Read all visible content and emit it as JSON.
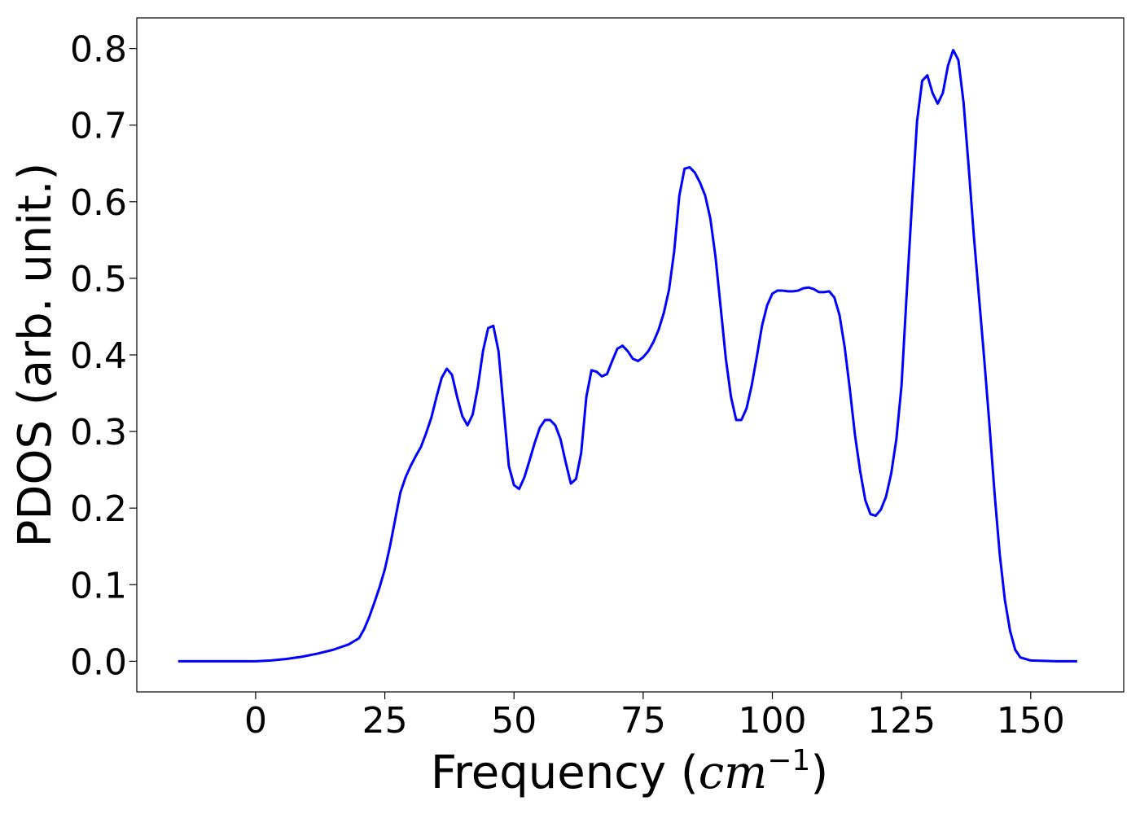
{
  "chart_data": {
    "type": "line",
    "xlabel_prefix": "Frequency (",
    "xlabel_math": "cm",
    "xlabel_sup": "−1",
    "xlabel_suffix": ")",
    "ylabel": "PDOS (arb. unit.)",
    "xlim": [
      -23,
      168
    ],
    "ylim": [
      -0.04,
      0.84
    ],
    "xticks": [
      0,
      25,
      50,
      75,
      100,
      125,
      150
    ],
    "yticks": [
      0.0,
      0.1,
      0.2,
      0.3,
      0.4,
      0.5,
      0.6,
      0.7,
      0.8
    ],
    "ytick_labels": [
      "0.0",
      "0.1",
      "0.2",
      "0.3",
      "0.4",
      "0.5",
      "0.6",
      "0.7",
      "0.8"
    ],
    "grid": false,
    "color": "#0000ff",
    "series": [
      {
        "x": [
          -15,
          -10,
          -5,
          0,
          3,
          6,
          9,
          12,
          15,
          18,
          20,
          21,
          22,
          23,
          24,
          25,
          26,
          27,
          28,
          29,
          30,
          31,
          32,
          33,
          34,
          35,
          36,
          37,
          38,
          39,
          40,
          41,
          42,
          43,
          44,
          45,
          46,
          47,
          48,
          49,
          50,
          51,
          52,
          53,
          54,
          55,
          56,
          57,
          58,
          59,
          60,
          61,
          62,
          63,
          64,
          65,
          66,
          67,
          68,
          69,
          70,
          71,
          72,
          73,
          74,
          75,
          76,
          77,
          78,
          79,
          80,
          81,
          82,
          83,
          84,
          85,
          86,
          87,
          88,
          89,
          90,
          91,
          92,
          93,
          94,
          95,
          96,
          97,
          98,
          99,
          100,
          101,
          102,
          103,
          104,
          105,
          106,
          107,
          108,
          109,
          110,
          111,
          112,
          113,
          114,
          115,
          116,
          117,
          118,
          119,
          120,
          121,
          122,
          123,
          124,
          125,
          126,
          127,
          128,
          129,
          130,
          131,
          132,
          133,
          134,
          135,
          136,
          137,
          138,
          139,
          140,
          141,
          142,
          143,
          144,
          145,
          146,
          147,
          148,
          150,
          155,
          159
        ],
        "y": [
          0.0,
          0.0,
          0.0,
          0.0,
          0.001,
          0.003,
          0.006,
          0.01,
          0.015,
          0.022,
          0.03,
          0.042,
          0.058,
          0.077,
          0.097,
          0.12,
          0.15,
          0.185,
          0.22,
          0.24,
          0.255,
          0.268,
          0.28,
          0.298,
          0.318,
          0.345,
          0.37,
          0.382,
          0.374,
          0.345,
          0.32,
          0.308,
          0.322,
          0.358,
          0.405,
          0.435,
          0.438,
          0.405,
          0.33,
          0.255,
          0.23,
          0.225,
          0.24,
          0.262,
          0.285,
          0.305,
          0.315,
          0.315,
          0.308,
          0.29,
          0.26,
          0.232,
          0.238,
          0.272,
          0.345,
          0.38,
          0.378,
          0.372,
          0.375,
          0.392,
          0.408,
          0.412,
          0.405,
          0.395,
          0.392,
          0.397,
          0.405,
          0.417,
          0.433,
          0.455,
          0.485,
          0.535,
          0.608,
          0.643,
          0.645,
          0.638,
          0.625,
          0.608,
          0.578,
          0.528,
          0.462,
          0.395,
          0.345,
          0.315,
          0.315,
          0.33,
          0.36,
          0.398,
          0.438,
          0.465,
          0.48,
          0.484,
          0.484,
          0.483,
          0.483,
          0.484,
          0.487,
          0.488,
          0.486,
          0.482,
          0.482,
          0.483,
          0.475,
          0.452,
          0.41,
          0.355,
          0.295,
          0.248,
          0.21,
          0.192,
          0.19,
          0.198,
          0.215,
          0.245,
          0.29,
          0.36,
          0.48,
          0.595,
          0.705,
          0.758,
          0.765,
          0.742,
          0.728,
          0.742,
          0.778,
          0.798,
          0.785,
          0.73,
          0.645,
          0.555,
          0.475,
          0.395,
          0.31,
          0.22,
          0.14,
          0.08,
          0.04,
          0.015,
          0.005,
          0.001,
          0.0,
          0.0
        ]
      }
    ]
  }
}
